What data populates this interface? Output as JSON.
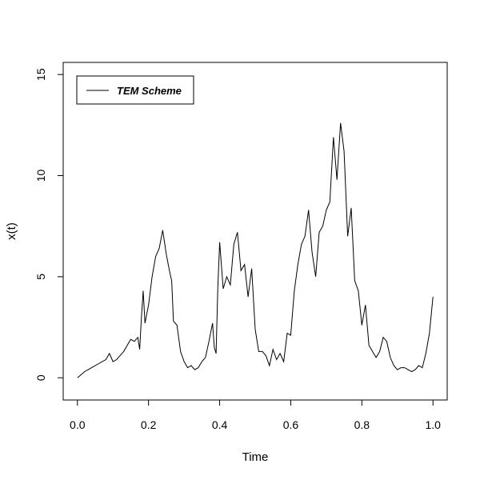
{
  "chart_data": {
    "type": "line",
    "title": "",
    "xlabel": "Time",
    "ylabel": "x(t)",
    "xlim": [
      -0.04,
      1.04
    ],
    "ylim": [
      -1.1,
      15.6
    ],
    "xticks": [
      0.0,
      0.2,
      0.4,
      0.6,
      0.8,
      1.0
    ],
    "xtick_labels": [
      "0.0",
      "0.2",
      "0.4",
      "0.6",
      "0.8",
      "1.0"
    ],
    "yticks": [
      0,
      5,
      10,
      15
    ],
    "ytick_labels": [
      "0",
      "5",
      "10",
      "15"
    ],
    "grid": false,
    "legend_position": "top-left",
    "series": [
      {
        "name": "TEM Scheme",
        "color": "#000000",
        "x": [
          0.0,
          0.02,
          0.04,
          0.06,
          0.08,
          0.09,
          0.1,
          0.11,
          0.12,
          0.13,
          0.14,
          0.15,
          0.16,
          0.17,
          0.175,
          0.18,
          0.185,
          0.19,
          0.2,
          0.21,
          0.22,
          0.23,
          0.24,
          0.25,
          0.26,
          0.265,
          0.27,
          0.28,
          0.29,
          0.3,
          0.31,
          0.32,
          0.33,
          0.34,
          0.35,
          0.36,
          0.37,
          0.38,
          0.385,
          0.39,
          0.395,
          0.4,
          0.41,
          0.42,
          0.43,
          0.44,
          0.45,
          0.46,
          0.47,
          0.48,
          0.49,
          0.5,
          0.51,
          0.52,
          0.53,
          0.54,
          0.55,
          0.56,
          0.57,
          0.58,
          0.59,
          0.6,
          0.61,
          0.62,
          0.63,
          0.64,
          0.65,
          0.66,
          0.67,
          0.68,
          0.69,
          0.7,
          0.71,
          0.72,
          0.73,
          0.74,
          0.75,
          0.76,
          0.77,
          0.78,
          0.79,
          0.8,
          0.81,
          0.82,
          0.83,
          0.84,
          0.85,
          0.86,
          0.87,
          0.88,
          0.89,
          0.9,
          0.91,
          0.92,
          0.93,
          0.94,
          0.95,
          0.96,
          0.97,
          0.98,
          0.99,
          1.0
        ],
        "y": [
          0.0,
          0.3,
          0.5,
          0.7,
          0.9,
          1.2,
          0.8,
          0.9,
          1.1,
          1.3,
          1.6,
          1.9,
          1.8,
          2.0,
          1.4,
          3.0,
          4.3,
          2.7,
          3.6,
          5.0,
          6.0,
          6.4,
          7.3,
          6.1,
          5.2,
          4.8,
          2.8,
          2.6,
          1.3,
          0.8,
          0.5,
          0.6,
          0.4,
          0.5,
          0.8,
          1.0,
          1.8,
          2.7,
          1.5,
          1.2,
          4.5,
          6.7,
          4.4,
          5.0,
          4.6,
          6.6,
          7.2,
          5.3,
          5.6,
          4.0,
          5.4,
          2.4,
          1.3,
          1.3,
          1.1,
          0.6,
          1.4,
          0.9,
          1.2,
          0.8,
          2.2,
          2.1,
          4.3,
          5.6,
          6.6,
          7.0,
          8.3,
          6.2,
          5.0,
          7.2,
          7.5,
          8.3,
          8.7,
          11.9,
          9.8,
          12.6,
          11.2,
          7.0,
          8.4,
          4.8,
          4.3,
          2.6,
          3.6,
          1.6,
          1.3,
          1.0,
          1.3,
          2.0,
          1.8,
          1.0,
          0.6,
          0.4,
          0.5,
          0.5,
          0.4,
          0.3,
          0.4,
          0.6,
          0.5,
          1.2,
          2.2,
          4.0
        ]
      }
    ]
  }
}
